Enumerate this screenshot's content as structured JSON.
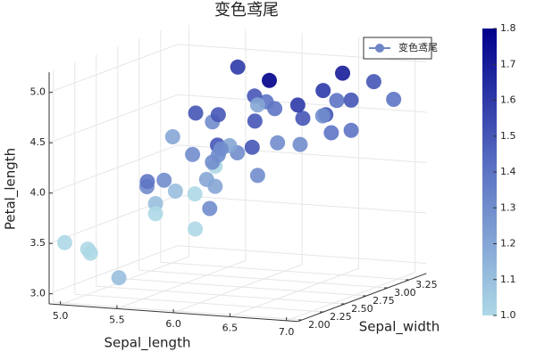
{
  "chart_data": {
    "type": "scatter3d",
    "title": "变色鸢尾",
    "xlabel": "Sepal_length",
    "ylabel": "Sepal_width",
    "zlabel": "Petal_length",
    "xlim": [
      4.9,
      7.1
    ],
    "ylim": [
      1.95,
      3.45
    ],
    "zlim": [
      2.9,
      5.2
    ],
    "xticks": [
      {
        "value": 5,
        "label": "5.0"
      },
      5.5,
      {
        "value": 6,
        "label": "6.0"
      },
      6.5,
      {
        "value": 7,
        "label": "7.0"
      }
    ],
    "yticks": [
      {
        "value": 2,
        "label": "2.00"
      },
      {
        "value": 2.25,
        "label": "2.25"
      },
      {
        "value": 2.5,
        "label": "2.50"
      },
      {
        "value": 2.75,
        "label": "2.75"
      },
      {
        "value": 3,
        "label": "3.00"
      },
      {
        "value": 3.25,
        "label": "3.25"
      }
    ],
    "zticks": [
      {
        "value": 3,
        "label": "3.0"
      },
      3.5,
      {
        "value": 4,
        "label": "4.0"
      },
      4.5,
      {
        "value": 5,
        "label": "5.0"
      }
    ],
    "grid": true,
    "legend": "top-right",
    "colorbar": {
      "lim": [
        1,
        1.8
      ],
      "ticks": [
        {
          "value": 1,
          "label": "1.0"
        },
        1.1,
        1.2,
        1.3,
        1.4,
        1.5,
        1.6,
        1.7,
        1.8
      ],
      "colormap": [
        "#add8e6",
        "#5d74c4",
        "#00008b"
      ]
    },
    "series": [
      {
        "name": "变色鸢尾",
        "color": "#6f86c6",
        "x": [
          7.0,
          6.4,
          6.9,
          5.5,
          6.5,
          5.7,
          6.3,
          4.9,
          6.6,
          5.2,
          5.0,
          5.9,
          6.0,
          6.1,
          5.6,
          6.7,
          5.6,
          5.8,
          6.2,
          5.6,
          5.9,
          6.1,
          6.3,
          6.1,
          6.4,
          6.6,
          6.8,
          6.7,
          6.0,
          5.7,
          5.5,
          5.5,
          5.8,
          6.0,
          5.4,
          6.0,
          6.7,
          6.3,
          5.6,
          5.5,
          5.5,
          6.1,
          5.8,
          5.0,
          5.6,
          5.7,
          5.7,
          6.2,
          5.1,
          5.7
        ],
        "y": [
          3.2,
          3.2,
          3.1,
          2.3,
          2.8,
          2.8,
          3.3,
          2.4,
          2.9,
          2.7,
          2.0,
          3.0,
          2.2,
          2.9,
          2.9,
          3.1,
          3.0,
          2.7,
          2.2,
          2.5,
          3.2,
          2.8,
          2.5,
          2.8,
          2.9,
          3.0,
          2.8,
          3.0,
          2.9,
          2.6,
          2.4,
          2.4,
          2.7,
          2.7,
          3.0,
          3.4,
          3.1,
          2.3,
          3.0,
          2.5,
          2.6,
          3.0,
          2.6,
          2.3,
          2.7,
          3.0,
          2.9,
          2.9,
          2.5,
          2.8
        ],
        "z": [
          4.7,
          4.5,
          4.9,
          4.0,
          4.6,
          4.5,
          4.7,
          3.3,
          4.6,
          3.9,
          3.5,
          4.2,
          4.0,
          4.7,
          3.6,
          4.4,
          4.5,
          4.1,
          4.5,
          3.9,
          4.8,
          4.0,
          4.9,
          4.7,
          4.3,
          4.4,
          4.8,
          5.0,
          4.5,
          3.5,
          3.8,
          3.7,
          3.9,
          5.1,
          4.5,
          4.5,
          4.7,
          4.4,
          4.1,
          4.0,
          4.4,
          4.6,
          4.0,
          3.3,
          4.2,
          4.2,
          4.2,
          4.3,
          3.0,
          4.1
        ],
        "color_values": [
          1.4,
          1.5,
          1.5,
          1.3,
          1.5,
          1.3,
          1.6,
          1.0,
          1.3,
          1.4,
          1.0,
          1.5,
          1.0,
          1.4,
          1.3,
          1.4,
          1.5,
          1.0,
          1.5,
          1.1,
          1.8,
          1.3,
          1.5,
          1.2,
          1.3,
          1.4,
          1.4,
          1.7,
          1.5,
          1.0,
          1.1,
          1.0,
          1.2,
          1.6,
          1.5,
          1.6,
          1.5,
          1.3,
          1.3,
          1.3,
          1.2,
          1.4,
          1.2,
          1.0,
          1.3,
          1.2,
          1.3,
          1.3,
          1.1,
          1.3
        ]
      }
    ]
  }
}
